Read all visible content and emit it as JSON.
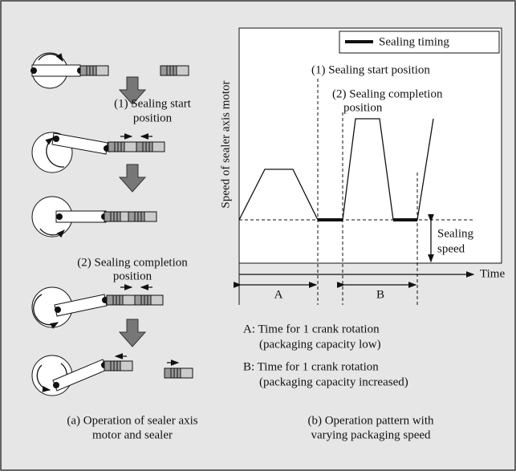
{
  "left_panel": {
    "steps": [
      {
        "label": [
          "(1) Sealing start",
          "position"
        ]
      },
      {
        "label": [
          "(2) Sealing completion",
          "position"
        ]
      }
    ],
    "caption": [
      "(a) Operation of sealer axis",
      "motor and sealer"
    ]
  },
  "right_panel": {
    "legend": "Sealing timing",
    "y_axis_label": "Speed of sealer axis motor",
    "x_axis_label": "Time",
    "annotations": {
      "start": "(1) Sealing start position",
      "completion": [
        "(2) Sealing completion",
        "position"
      ],
      "sealing_speed": [
        "Sealing",
        "speed"
      ]
    },
    "intervals": [
      "A",
      "B"
    ],
    "notes": [
      [
        "A:  Time for 1 crank rotation",
        "(packaging capacity low)"
      ],
      [
        "B:  Time for 1 crank rotation",
        "(packaging capacity increased)"
      ]
    ],
    "caption": [
      "(b) Operation pattern with",
      "varying packaging speed"
    ]
  }
}
